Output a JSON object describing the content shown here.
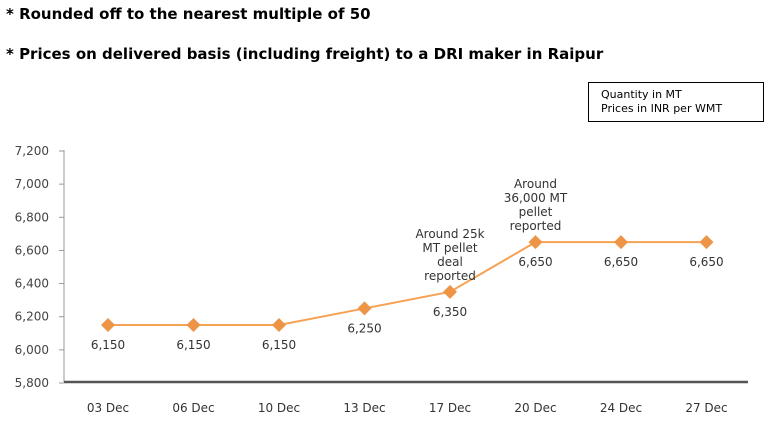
{
  "notes": [
    "* Rounded off to the nearest multiple of 50",
    "* Prices on delivered basis (including freight) to a DRI maker in Raipur"
  ],
  "legend_box": {
    "line1": "Quantity in MT",
    "line2": "Prices in INR per WMT"
  },
  "colors": {
    "series": "#F5A254",
    "marker": "#EE9447",
    "axis": "#555555"
  },
  "chart_data": {
    "type": "line",
    "title": "",
    "xlabel": "",
    "ylabel": "",
    "categories": [
      "03 Dec",
      "06 Dec",
      "10 Dec",
      "13 Dec",
      "17 Dec",
      "20 Dec",
      "24 Dec",
      "27 Dec"
    ],
    "series": [
      {
        "values": [
          6150,
          6150,
          6150,
          6250,
          6350,
          6650,
          6650,
          6650
        ]
      }
    ],
    "data_labels": [
      "6,150",
      "6,150",
      "6,150",
      "6,250",
      "6,350",
      "6,650",
      "6,650",
      "6,650"
    ],
    "ylim": [
      5800,
      7200
    ],
    "yticks": [
      5800,
      6000,
      6200,
      6400,
      6600,
      6800,
      7000,
      7200
    ],
    "ytick_labels": [
      "5,800",
      "6,000",
      "6,200",
      "6,400",
      "6,600",
      "6,800",
      "7,000",
      "7,200"
    ],
    "grid": false,
    "annotations": [
      {
        "category": "17 Dec",
        "lines": [
          "Around 25k",
          "MT pellet",
          "deal",
          "reported"
        ]
      },
      {
        "category": "20 Dec",
        "lines": [
          "Around",
          "36,000 MT",
          "pellet",
          "reported"
        ]
      }
    ]
  }
}
